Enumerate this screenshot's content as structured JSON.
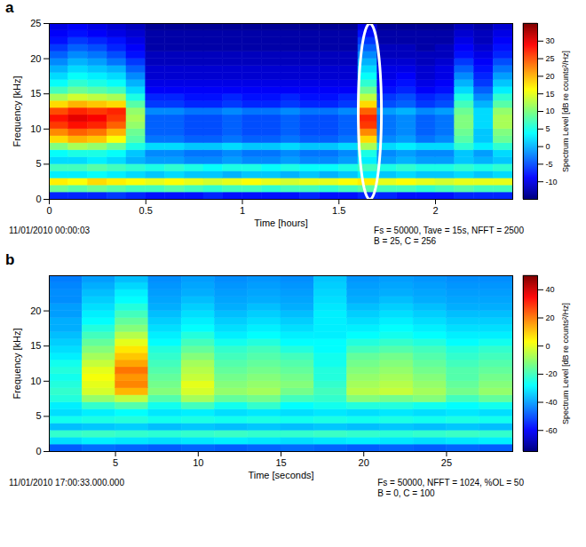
{
  "chart_data": [
    {
      "type": "heatmap",
      "panel_label": "a",
      "xlabel": "Time [hours]",
      "ylabel": "Frequency [kHz]",
      "xlim": [
        0,
        2.4
      ],
      "ylim": [
        0,
        25
      ],
      "xticks": [
        0,
        0.5,
        1,
        1.5,
        2
      ],
      "yticks": [
        0,
        5,
        10,
        15,
        20,
        25
      ],
      "x_bins": [
        0,
        0.1,
        0.2,
        0.3,
        0.4,
        0.5,
        0.6,
        0.7,
        0.8,
        0.9,
        1,
        1.1,
        1.2,
        1.3,
        1.4,
        1.5,
        1.6,
        1.7,
        1.8,
        1.9,
        2,
        2.1,
        2.2,
        2.3,
        2.4
      ],
      "y_bins": [
        0,
        1,
        2,
        3,
        4,
        5,
        6,
        7,
        8,
        9,
        10,
        11,
        12,
        13,
        14,
        15,
        16,
        17,
        18,
        19,
        20,
        21,
        22,
        23,
        24,
        25
      ],
      "values": [
        [
          -7,
          -7,
          -7,
          -6,
          -7,
          -8,
          -8,
          -8,
          -7,
          -8,
          -8,
          -8,
          -8,
          -7,
          -8,
          -8,
          -7,
          -7,
          -8,
          -8,
          -8,
          -7,
          -7,
          -7
        ],
        [
          9,
          8,
          9,
          8,
          7,
          7,
          8,
          7,
          6,
          7,
          7,
          6,
          7,
          7,
          6,
          7,
          8,
          7,
          7,
          6,
          7,
          8,
          7,
          7
        ],
        [
          17,
          16,
          18,
          17,
          16,
          15,
          16,
          15,
          14,
          15,
          16,
          15,
          14,
          15,
          15,
          16,
          17,
          15,
          16,
          15,
          14,
          15,
          15,
          15
        ],
        [
          3,
          3,
          4,
          3,
          2,
          1,
          2,
          1,
          1,
          0,
          1,
          1,
          0,
          1,
          0,
          1,
          3,
          1,
          2,
          1,
          1,
          2,
          1,
          2
        ],
        [
          7,
          7,
          8,
          7,
          6,
          5,
          6,
          5,
          4,
          5,
          5,
          4,
          5,
          4,
          4,
          5,
          7,
          5,
          6,
          5,
          5,
          6,
          5,
          6
        ],
        [
          2,
          2,
          3,
          2,
          0,
          -1,
          -1,
          -2,
          -2,
          -1,
          -2,
          -2,
          -1,
          -2,
          -2,
          -1,
          3,
          -1,
          0,
          -1,
          -1,
          1,
          0,
          1
        ],
        [
          4,
          5,
          5,
          4,
          1,
          -2,
          -2,
          -3,
          -3,
          -2,
          -3,
          -3,
          -2,
          -3,
          -3,
          -2,
          5,
          -2,
          -1,
          -2,
          -2,
          1,
          -1,
          2
        ],
        [
          10,
          12,
          11,
          9,
          5,
          2,
          2,
          1,
          1,
          2,
          1,
          1,
          2,
          1,
          1,
          2,
          12,
          2,
          3,
          2,
          2,
          6,
          3,
          6
        ],
        [
          18,
          20,
          19,
          16,
          8,
          -3,
          -3,
          -4,
          -4,
          -3,
          -4,
          -4,
          -3,
          -4,
          -4,
          -3,
          18,
          -2,
          -1,
          -3,
          -2,
          8,
          1,
          9
        ],
        [
          22,
          24,
          23,
          20,
          9,
          -4,
          -4,
          -5,
          -5,
          -4,
          -5,
          -5,
          -4,
          -5,
          -5,
          -4,
          22,
          -3,
          -2,
          -4,
          -3,
          9,
          1,
          10
        ],
        [
          26,
          28,
          27,
          24,
          11,
          -4,
          -4,
          -5,
          -5,
          -4,
          -5,
          -5,
          -4,
          -5,
          -5,
          -4,
          26,
          -3,
          -2,
          -4,
          -3,
          10,
          2,
          12
        ],
        [
          28,
          30,
          29,
          26,
          12,
          -4,
          -4,
          -5,
          -5,
          -4,
          -5,
          -5,
          -4,
          -5,
          -5,
          -4,
          27,
          -3,
          -2,
          -4,
          -3,
          10,
          2,
          12
        ],
        [
          25,
          27,
          26,
          27,
          11,
          -2,
          -2,
          -3,
          -3,
          -2,
          -3,
          -3,
          -2,
          -3,
          -3,
          -2,
          24,
          -1,
          0,
          -2,
          -1,
          9,
          2,
          11
        ],
        [
          18,
          20,
          19,
          18,
          8,
          -6,
          -6,
          -7,
          -7,
          -6,
          -7,
          -7,
          -6,
          -7,
          -7,
          -6,
          18,
          -5,
          -4,
          -6,
          -5,
          7,
          0,
          8
        ],
        [
          12,
          14,
          13,
          12,
          5,
          -7,
          -7,
          -8,
          -8,
          -7,
          -8,
          -8,
          -7,
          -8,
          -8,
          -7,
          13,
          -6,
          -5,
          -7,
          -6,
          5,
          -2,
          6
        ],
        [
          7,
          9,
          8,
          7,
          2,
          -9,
          -9,
          -9,
          -9,
          -9,
          -9,
          -9,
          -9,
          -9,
          -9,
          -9,
          9,
          -8,
          -7,
          -9,
          -8,
          2,
          -4,
          3
        ],
        [
          4,
          6,
          5,
          4,
          0,
          -10,
          -10,
          -10,
          -10,
          -10,
          -10,
          -10,
          -10,
          -10,
          -10,
          -10,
          6,
          -9,
          -8,
          -10,
          -9,
          0,
          -6,
          1
        ],
        [
          2,
          4,
          3,
          2,
          -2,
          -11,
          -11,
          -11,
          -11,
          -11,
          -11,
          -11,
          -11,
          -11,
          -11,
          -11,
          4,
          -10,
          -9,
          -11,
          -10,
          -2,
          -7,
          -1
        ],
        [
          0,
          2,
          1,
          0,
          -4,
          -11,
          -11,
          -11,
          -11,
          -11,
          -11,
          -11,
          -11,
          -11,
          -11,
          -11,
          2,
          -10,
          -10,
          -11,
          -10,
          -4,
          -8,
          -3
        ],
        [
          -2,
          0,
          -1,
          -3,
          -6,
          -12,
          -12,
          -12,
          -12,
          -12,
          -12,
          -12,
          -12,
          -12,
          -12,
          -12,
          0,
          -11,
          -11,
          -12,
          -11,
          -6,
          -9,
          -5
        ],
        [
          -4,
          -2,
          -3,
          -5,
          -8,
          -12,
          -12,
          -12,
          -12,
          -12,
          -12,
          -12,
          -12,
          -12,
          -12,
          -12,
          -2,
          -12,
          -12,
          -12,
          -12,
          -8,
          -10,
          -7
        ],
        [
          -6,
          -4,
          -5,
          -7,
          -9,
          -13,
          -13,
          -13,
          -13,
          -13,
          -13,
          -13,
          -13,
          -13,
          -13,
          -13,
          -4,
          -12,
          -12,
          -13,
          -12,
          -9,
          -11,
          -8
        ],
        [
          -8,
          -6,
          -7,
          -8,
          -10,
          -13,
          -13,
          -13,
          -13,
          -13,
          -13,
          -13,
          -13,
          -13,
          -13,
          -13,
          -6,
          -13,
          -13,
          -13,
          -13,
          -10,
          -12,
          -9
        ],
        [
          -9,
          -8,
          -9,
          -10,
          -11,
          -13,
          -13,
          -13,
          -13,
          -13,
          -13,
          -13,
          -13,
          -13,
          -13,
          -13,
          -8,
          -13,
          -13,
          -13,
          -13,
          -11,
          -12,
          -10
        ],
        [
          -10,
          -9,
          -10,
          -11,
          -12,
          -14,
          -14,
          -14,
          -14,
          -14,
          -14,
          -14,
          -14,
          -14,
          -14,
          -14,
          -10,
          -14,
          -14,
          -14,
          -14,
          -12,
          -13,
          -11
        ]
      ],
      "colorbar": {
        "label": "Spectrum Level [dB re counts²/Hz]",
        "range": [
          -15,
          35
        ],
        "ticks": [
          -10,
          -5,
          0,
          5,
          10,
          15,
          20,
          25,
          30
        ]
      },
      "footer_left": "11/01/2010 00:00:03",
      "footer_right": [
        "Fs = 50000, Tave = 15s, NFFT = 2500",
        "B = 25, C = 256"
      ],
      "annotations": [
        {
          "type": "ellipse",
          "x": [
            1.6,
            1.72
          ],
          "y": [
            0,
            25
          ],
          "color": "#ffffff"
        }
      ]
    },
    {
      "type": "heatmap",
      "panel_label": "b",
      "xlabel": "Time [seconds]",
      "ylabel": "Frequency [kHz]",
      "xlim": [
        1,
        29
      ],
      "ylim": [
        0,
        25
      ],
      "xticks": [
        5,
        10,
        15,
        20,
        25
      ],
      "yticks": [
        0,
        5,
        10,
        15,
        20
      ],
      "x_bins": [
        1,
        3,
        5,
        7,
        9,
        11,
        13,
        15,
        17,
        19,
        21,
        23,
        25,
        27,
        29
      ],
      "y_bins": [
        0,
        1,
        2,
        3,
        4,
        5,
        6,
        7,
        8,
        9,
        10,
        11,
        12,
        13,
        14,
        15,
        16,
        17,
        18,
        19,
        20,
        21,
        22,
        23,
        24,
        25
      ],
      "values": [
        [
          -48,
          -46,
          -47,
          -48,
          -47,
          -48,
          -47,
          -46,
          -47,
          -48,
          -47,
          -48,
          -47,
          -48
        ],
        [
          -32,
          -30,
          -31,
          -32,
          -31,
          -30,
          -31,
          -32,
          -31,
          -30,
          -31,
          -32,
          -31,
          -30
        ],
        [
          -22,
          -21,
          -22,
          -23,
          -22,
          -21,
          -22,
          -22,
          -21,
          -22,
          -23,
          -22,
          -21,
          -22
        ],
        [
          -36,
          -35,
          -34,
          -36,
          -35,
          -36,
          -35,
          -36,
          -35,
          -36,
          -35,
          -36,
          -35,
          -36
        ],
        [
          -26,
          -25,
          -24,
          -26,
          -25,
          -26,
          -25,
          -26,
          -25,
          -26,
          -25,
          -26,
          -25,
          -26
        ],
        [
          -32,
          -30,
          -28,
          -31,
          -30,
          -32,
          -31,
          -32,
          -31,
          -32,
          -31,
          -32,
          -31,
          -32
        ],
        [
          -30,
          -22,
          -18,
          -26,
          -20,
          -26,
          -22,
          -28,
          -26,
          -24,
          -24,
          -26,
          -28,
          -26
        ],
        [
          -24,
          -10,
          -5,
          -18,
          -8,
          -16,
          -14,
          -20,
          -22,
          -12,
          -14,
          -12,
          -20,
          -16
        ],
        [
          -22,
          -2,
          12,
          -12,
          -2,
          -10,
          -8,
          -14,
          -20,
          -6,
          -4,
          -8,
          -14,
          -10
        ],
        [
          -24,
          0,
          18,
          -14,
          0,
          -12,
          -10,
          -12,
          -22,
          -8,
          -6,
          -10,
          -16,
          -12
        ],
        [
          -26,
          2,
          16,
          -16,
          -4,
          -14,
          -12,
          -14,
          -24,
          -10,
          -8,
          -12,
          -18,
          -14
        ],
        [
          -24,
          0,
          20,
          -18,
          -6,
          -16,
          -14,
          -16,
          -24,
          -12,
          -10,
          -14,
          -18,
          -16
        ],
        [
          -26,
          -4,
          14,
          -20,
          -8,
          -18,
          -16,
          -18,
          -26,
          -14,
          -12,
          -16,
          -20,
          -18
        ],
        [
          -30,
          -8,
          10,
          -22,
          -12,
          -20,
          -18,
          -20,
          -26,
          -16,
          -14,
          -18,
          -22,
          -20
        ],
        [
          -32,
          -12,
          6,
          -24,
          -16,
          -22,
          -20,
          -24,
          -28,
          -20,
          -18,
          -20,
          -24,
          -22
        ],
        [
          -34,
          -16,
          0,
          -28,
          -20,
          -26,
          -24,
          -28,
          -28,
          -24,
          -22,
          -24,
          -28,
          -26
        ],
        [
          -36,
          -20,
          -6,
          -30,
          -24,
          -30,
          -28,
          -30,
          -30,
          -28,
          -26,
          -28,
          -30,
          -30
        ],
        [
          -38,
          -24,
          -12,
          -32,
          -28,
          -32,
          -30,
          -32,
          -30,
          -30,
          -28,
          -30,
          -32,
          -32
        ],
        [
          -38,
          -28,
          -16,
          -34,
          -30,
          -34,
          -32,
          -34,
          -30,
          -32,
          -30,
          -32,
          -34,
          -34
        ],
        [
          -40,
          -30,
          -20,
          -36,
          -32,
          -36,
          -34,
          -36,
          -30,
          -34,
          -32,
          -34,
          -36,
          -36
        ],
        [
          -40,
          -32,
          -24,
          -38,
          -34,
          -38,
          -36,
          -38,
          -31,
          -36,
          -34,
          -36,
          -38,
          -38
        ],
        [
          -42,
          -34,
          -28,
          -39,
          -36,
          -39,
          -38,
          -39,
          -32,
          -38,
          -36,
          -38,
          -39,
          -39
        ],
        [
          -42,
          -36,
          -30,
          -40,
          -38,
          -40,
          -39,
          -40,
          -33,
          -39,
          -38,
          -39,
          -40,
          -40
        ],
        [
          -43,
          -38,
          -33,
          -41,
          -39,
          -41,
          -40,
          -41,
          -34,
          -40,
          -39,
          -40,
          -41,
          -41
        ],
        [
          -44,
          -40,
          -36,
          -42,
          -40,
          -42,
          -41,
          -42,
          -35,
          -41,
          -40,
          -41,
          -42,
          -42
        ]
      ],
      "colorbar": {
        "label": "Spectrum Level [dB re counts²/Hz]",
        "range": [
          -75,
          50
        ],
        "ticks": [
          -60,
          -40,
          -20,
          0,
          20,
          40
        ]
      },
      "footer_left": "11/01/2010 17:00:33.000.000",
      "footer_right": [
        "Fs = 50000, NFFT = 1024, %OL = 50",
        "B = 0, C = 100"
      ]
    }
  ]
}
